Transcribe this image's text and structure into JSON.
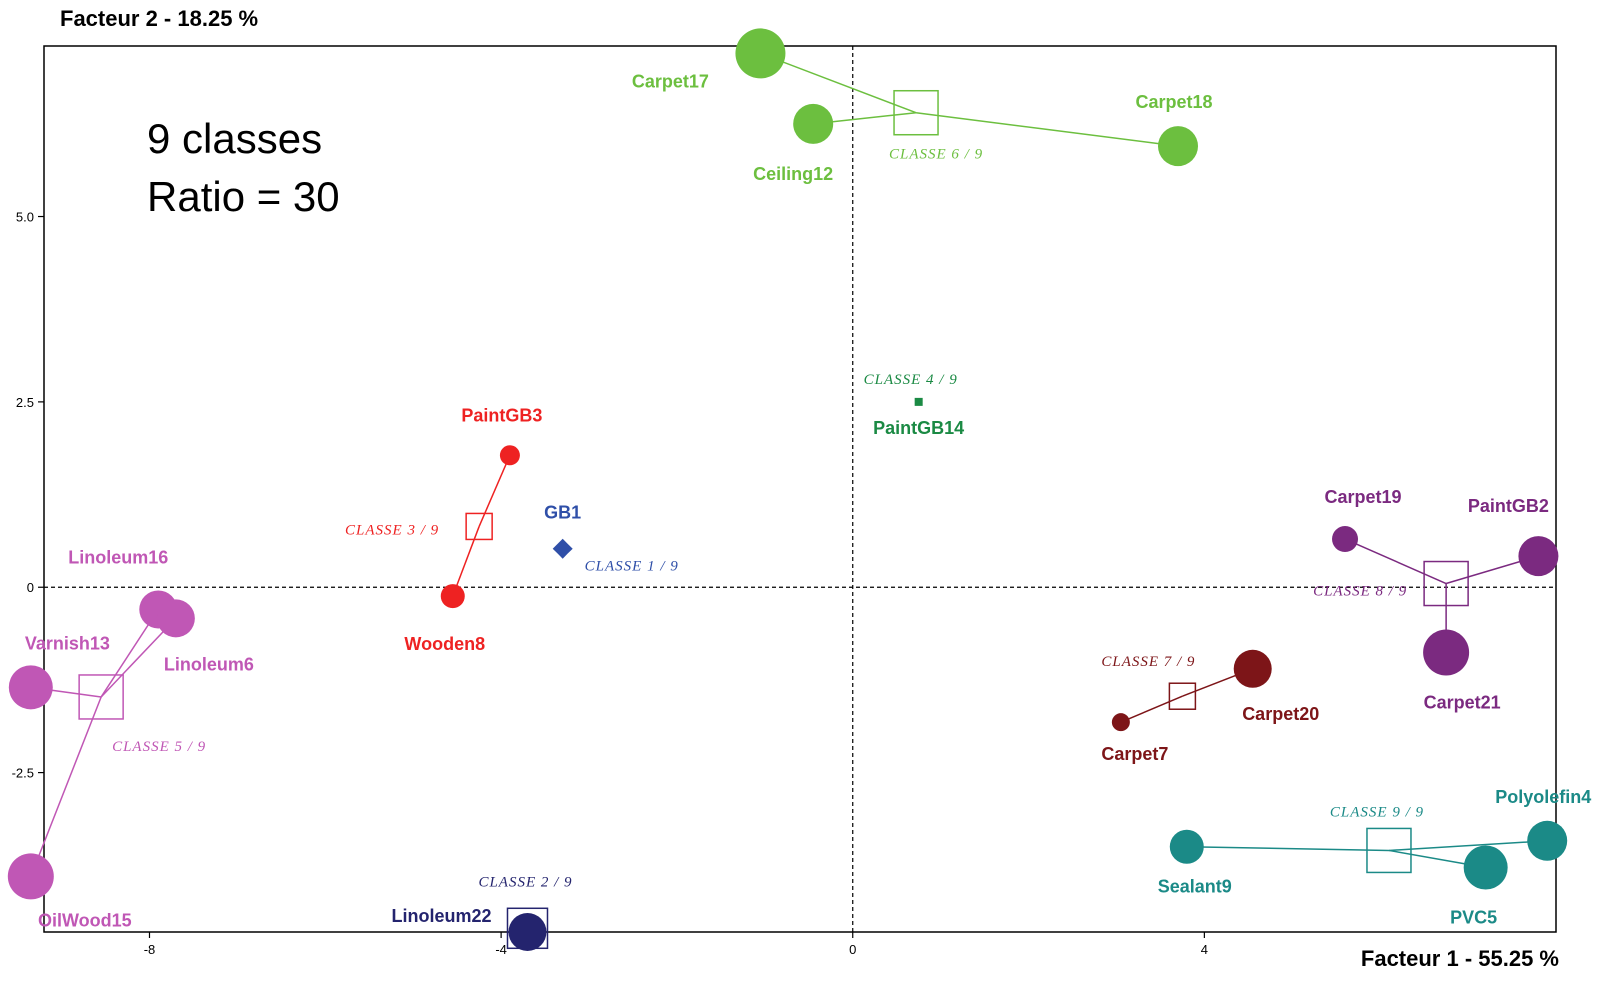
{
  "chart_data": {
    "type": "scatter",
    "xlabel": "Facteur 1  -  55.25 %",
    "ylabel": "Facteur 2  -  18.25 %",
    "annotation": [
      "9 classes",
      "Ratio = 30"
    ],
    "xlim": [
      -9.2,
      8.0
    ],
    "ylim": [
      -4.65,
      7.3
    ],
    "x_ticks": [
      {
        "value": -8,
        "label": "-8"
      },
      {
        "value": -4,
        "label": "-4"
      },
      {
        "value": 0,
        "label": "0"
      },
      {
        "value": 4,
        "label": "4"
      }
    ],
    "y_ticks": [
      {
        "value": 5.0,
        "label": "5.0"
      },
      {
        "value": 2.5,
        "label": "2.5"
      },
      {
        "value": 0,
        "label": "0"
      },
      {
        "value": -2.5,
        "label": "-2.5"
      }
    ],
    "grid": false,
    "zero_lines": true,
    "classes": [
      {
        "label": "CLASSE  1 / 9",
        "color": "#2f4fa8",
        "center": [
          -3.3,
          0.52
        ],
        "show_box": false,
        "members": [
          {
            "name": "GB1",
            "x": -3.3,
            "y": 0.52,
            "size": 6
          }
        ]
      },
      {
        "label": "CLASSE  2 / 9",
        "color": "#24246e",
        "center": [
          -3.7,
          -4.6
        ],
        "show_box": true,
        "members": [
          {
            "name": "Linoleum22",
            "x": -3.7,
            "y": -4.65,
            "size": 19
          }
        ]
      },
      {
        "label": "CLASSE  3 / 9",
        "color": "#ee2222",
        "center": [
          -4.25,
          0.82
        ],
        "show_box": true,
        "members": [
          {
            "name": "PaintGB3",
            "x": -3.9,
            "y": 1.78,
            "size": 10
          },
          {
            "name": "Wooden8",
            "x": -4.55,
            "y": -0.12,
            "size": 12
          }
        ]
      },
      {
        "label": "CLASSE  4 / 9",
        "color": "#1b8a44",
        "center": [
          0.75,
          2.5
        ],
        "show_box": false,
        "members": [
          {
            "name": "PaintGB14",
            "x": 0.75,
            "y": 2.5,
            "size": 4
          }
        ]
      },
      {
        "label": "CLASSE  5 / 9",
        "color": "#c057b5",
        "center": [
          -8.55,
          -1.48
        ],
        "show_box": true,
        "members": [
          {
            "name": "Linoleum16",
            "x": -7.9,
            "y": -0.3,
            "size": 19
          },
          {
            "name": "Linoleum6",
            "x": -7.7,
            "y": -0.42,
            "size": 19
          },
          {
            "name": "Varnish13",
            "x": -9.35,
            "y": -1.35,
            "size": 22
          },
          {
            "name": "OilWood15",
            "x": -9.35,
            "y": -3.9,
            "size": 23
          }
        ]
      },
      {
        "label": "CLASSE  6 / 9",
        "color": "#6cbf3f",
        "center": [
          0.72,
          6.4
        ],
        "show_box": true,
        "members": [
          {
            "name": "Carpet17",
            "x": -1.05,
            "y": 7.2,
            "size": 25
          },
          {
            "name": "Ceiling12",
            "x": -0.45,
            "y": 6.25,
            "size": 20
          },
          {
            "name": "Carpet18",
            "x": 3.7,
            "y": 5.95,
            "size": 20
          }
        ]
      },
      {
        "label": "CLASSE  7 / 9",
        "color": "#7d1518",
        "center": [
          3.75,
          -1.47
        ],
        "show_box": true,
        "members": [
          {
            "name": "Carpet7",
            "x": 3.05,
            "y": -1.82,
            "size": 9
          },
          {
            "name": "Carpet20",
            "x": 4.55,
            "y": -1.1,
            "size": 19
          }
        ]
      },
      {
        "label": "CLASSE  8 / 9",
        "color": "#7b2a80",
        "center": [
          6.75,
          0.05
        ],
        "show_box": true,
        "members": [
          {
            "name": "Carpet19",
            "x": 5.6,
            "y": 0.65,
            "size": 13
          },
          {
            "name": "PaintGB2",
            "x": 7.8,
            "y": 0.42,
            "size": 20
          },
          {
            "name": "Carpet21",
            "x": 6.75,
            "y": -0.88,
            "size": 23
          }
        ]
      },
      {
        "label": "CLASSE  9 / 9",
        "color": "#1b8a87",
        "center": [
          6.1,
          -3.55
        ],
        "show_box": true,
        "members": [
          {
            "name": "Sealant9",
            "x": 3.8,
            "y": -3.5,
            "size": 17
          },
          {
            "name": "PVC5",
            "x": 7.2,
            "y": -3.78,
            "size": 22
          },
          {
            "name": "Polyolefin4",
            "x": 7.9,
            "y": -3.42,
            "size": 20
          }
        ]
      }
    ]
  }
}
